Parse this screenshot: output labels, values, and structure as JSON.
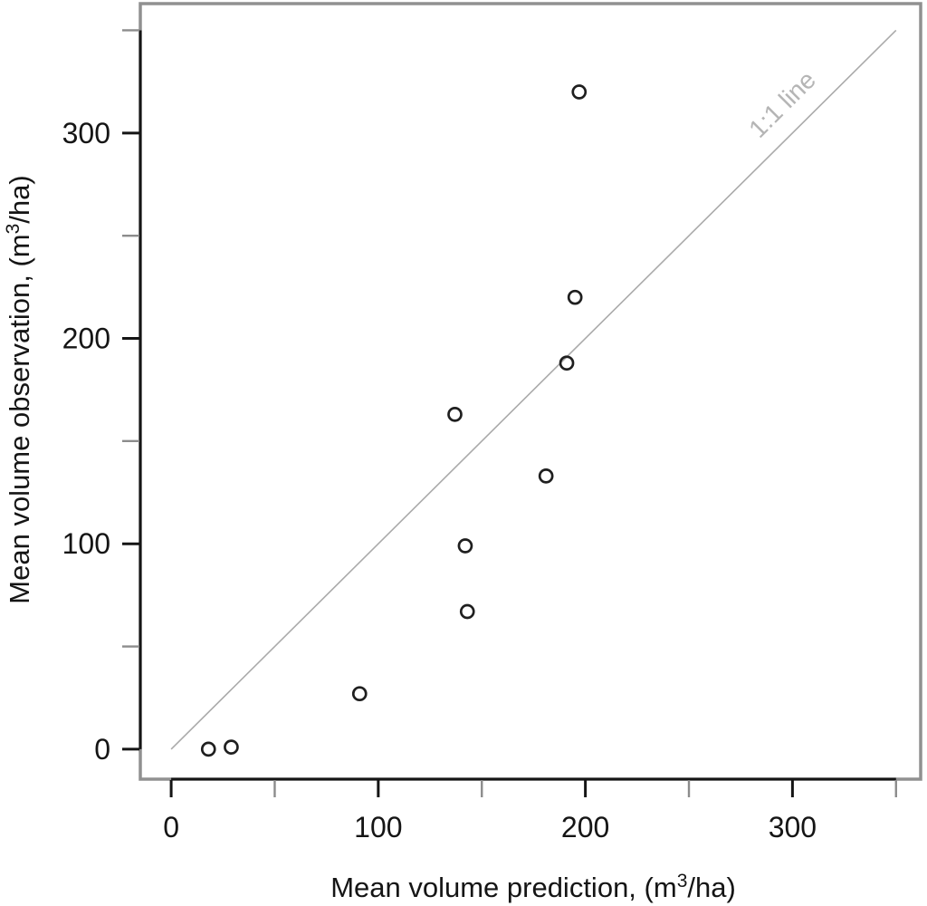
{
  "figure": {
    "background": "#ffffff",
    "title": ""
  },
  "chart_data": {
    "type": "scatter",
    "title": "",
    "xlabel": {
      "prefix": "Mean volume prediction, (m",
      "sup": "3",
      "suffix": "/ha)"
    },
    "ylabel": {
      "prefix": "Mean volume observation, (m",
      "sup": "3",
      "suffix": "/ha)"
    },
    "xlim": [
      -14.9,
      361.9
    ],
    "ylim": [
      -14.6,
      363.0
    ],
    "x_ticks": [
      0,
      50,
      100,
      150,
      200,
      250,
      300,
      350
    ],
    "y_ticks": [
      0,
      50,
      100,
      150,
      200,
      250,
      300,
      350
    ],
    "x_tick_labels": [
      "0",
      "",
      "100",
      "",
      "200",
      "",
      "300",
      ""
    ],
    "y_tick_labels": [
      "0",
      "",
      "100",
      "",
      "200",
      "",
      "300",
      ""
    ],
    "grid": false,
    "legend": null,
    "marker": {
      "shape": "open-circle"
    },
    "points": [
      {
        "x": 18,
        "y": 0
      },
      {
        "x": 29,
        "y": 1
      },
      {
        "x": 91,
        "y": 27
      },
      {
        "x": 137,
        "y": 163
      },
      {
        "x": 142,
        "y": 99
      },
      {
        "x": 143,
        "y": 67
      },
      {
        "x": 181,
        "y": 133
      },
      {
        "x": 191,
        "y": 188
      },
      {
        "x": 195,
        "y": 220
      },
      {
        "x": 197,
        "y": 320
      }
    ],
    "reference_line": {
      "label": "1:1 line",
      "from": [
        0,
        0
      ],
      "to": [
        350,
        350
      ],
      "label_x": 298,
      "label_y": 311,
      "label_rotation_deg": -45
    },
    "colors": {
      "points": "#1f1f1f",
      "axis": "#151515",
      "minor_tick": "#8c8c8c",
      "box": "#909090",
      "reference_line": "#aaaaaa",
      "reference_label": "#b5b5b5",
      "background": "#ffffff"
    }
  }
}
